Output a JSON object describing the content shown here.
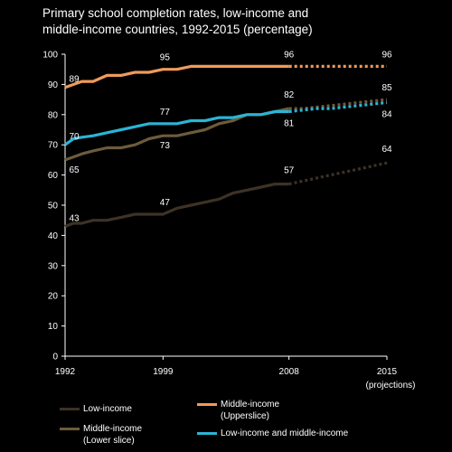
{
  "chart_data": {
    "type": "line",
    "title_line1": "Primary school completion rates, low-income and",
    "title_line2": "middle-income countries, 1992-2015 (percentage)",
    "y_ticks": [
      0,
      10,
      20,
      30,
      40,
      50,
      60,
      70,
      80,
      90,
      100
    ],
    "ylim": [
      0,
      100
    ],
    "xlim": [
      1992,
      2015
    ],
    "x_tick_labels": [
      {
        "x": 1992,
        "label": "1992"
      },
      {
        "x": 1999,
        "label": "1999"
      },
      {
        "x": 2008,
        "label": "2008"
      },
      {
        "x": 2015,
        "label": "2015"
      }
    ],
    "projection_note": "(projections)",
    "projection_start": 2008,
    "series": [
      {
        "name": "Low-income",
        "color": "#3d3226",
        "x": [
          1992,
          1992.6,
          1993.2,
          1994,
          1995,
          1996,
          1997,
          1998,
          1999,
          2000,
          2001,
          2002,
          2003,
          2004,
          2005,
          2006,
          2007,
          2008,
          2009,
          2010,
          2011,
          2012,
          2013,
          2014,
          2015
        ],
        "y": [
          43,
          44,
          44,
          45,
          45,
          46,
          47,
          47,
          47,
          49,
          50,
          51,
          52,
          54,
          55,
          56,
          57,
          57,
          58,
          59,
          60,
          61,
          62,
          63,
          64
        ],
        "labels": [
          {
            "x": 1992,
            "y": 43,
            "text": "43"
          },
          {
            "x": 1999,
            "y": 47,
            "text": "47"
          },
          {
            "x": 2008,
            "y": 57,
            "text": "57"
          },
          {
            "x": 2015,
            "y": 64,
            "text": "64"
          }
        ]
      },
      {
        "name": "Middle-income (Lower slice)",
        "color": "#6e5a3c",
        "x": [
          1992,
          1992.6,
          1993.2,
          1994,
          1995,
          1996,
          1997,
          1998,
          1999,
          2000,
          2001,
          2002,
          2003,
          2004,
          2005,
          2006,
          2007,
          2008,
          2009,
          2010,
          2011,
          2012,
          2013,
          2014,
          2015
        ],
        "y": [
          65,
          66,
          67,
          68,
          69,
          69,
          70,
          72,
          73,
          73,
          74,
          75,
          77,
          78,
          80,
          80,
          81,
          82,
          82,
          82.5,
          83,
          83.5,
          84,
          84.5,
          85
        ],
        "labels": [
          {
            "x": 1992,
            "y": 65,
            "text": "65"
          },
          {
            "x": 1999,
            "y": 73,
            "text": "73"
          },
          {
            "x": 2008,
            "y": 82,
            "text": "82"
          },
          {
            "x": 2015,
            "y": 85,
            "text": "85"
          }
        ]
      },
      {
        "name": "Middle-income (Upperslice)",
        "color": "#f09a5a",
        "x": [
          1992,
          1992.6,
          1993.2,
          1994,
          1995,
          1996,
          1997,
          1998,
          1999,
          2000,
          2001,
          2002,
          2003,
          2004,
          2005,
          2006,
          2007,
          2008,
          2009,
          2010,
          2011,
          2012,
          2013,
          2014,
          2015
        ],
        "y": [
          89,
          90,
          91,
          91,
          93,
          93,
          94,
          94,
          95,
          95,
          96,
          96,
          96,
          96,
          96,
          96,
          96,
          96,
          96,
          96,
          96,
          96,
          96,
          96,
          96
        ],
        "labels": [
          {
            "x": 1992,
            "y": 89,
            "text": "89"
          },
          {
            "x": 1999,
            "y": 95,
            "text": "95"
          },
          {
            "x": 2008,
            "y": 96,
            "text": "96"
          },
          {
            "x": 2015,
            "y": 96,
            "text": "96"
          }
        ]
      },
      {
        "name": "Low-income and middle-income",
        "color": "#2bb4d6",
        "x": [
          1992,
          1992.6,
          1993.2,
          1994,
          1995,
          1996,
          1997,
          1998,
          1999,
          2000,
          2001,
          2002,
          2003,
          2004,
          2005,
          2006,
          2007,
          2008,
          2009,
          2010,
          2011,
          2012,
          2013,
          2014,
          2015
        ],
        "y": [
          70,
          72,
          72.5,
          73,
          74,
          75,
          76,
          77,
          77,
          77,
          78,
          78,
          79,
          79,
          80,
          80,
          81,
          81,
          81.5,
          82,
          82,
          82.5,
          83,
          83.5,
          84
        ],
        "labels": [
          {
            "x": 1992,
            "y": 70,
            "text": "70"
          },
          {
            "x": 1999,
            "y": 77,
            "text": "77"
          },
          {
            "x": 2008,
            "y": 81,
            "text": "81"
          },
          {
            "x": 2015,
            "y": 84,
            "text": "84"
          }
        ]
      }
    ],
    "legend": {
      "low_income": "Low-income",
      "middle_lower_1": "Middle-income",
      "middle_lower_2": "(Lower slice)",
      "middle_upper_1": "Middle-income",
      "middle_upper_2": "(Upperslice)",
      "low_and_middle": "Low-income and middle-income"
    }
  }
}
